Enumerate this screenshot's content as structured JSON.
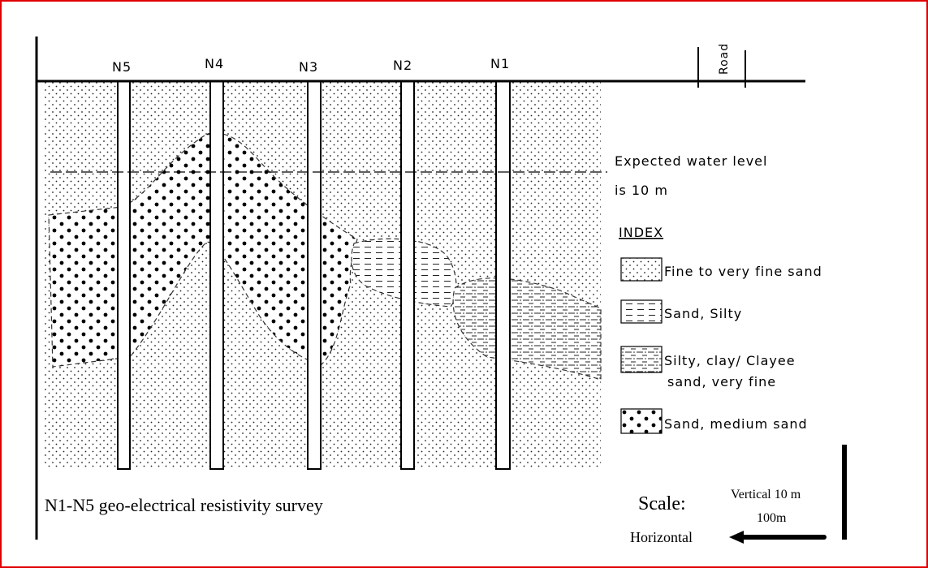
{
  "boreholes": [
    "N5",
    "N4",
    "N3",
    "N2",
    "N1"
  ],
  "road": "Road",
  "water_level": [
    "Expected water level",
    "is 10 m"
  ],
  "index": {
    "title": "INDEX",
    "items": [
      [
        "Fine to very fine sand"
      ],
      [
        "Sand, Silty"
      ],
      [
        "Silty, clay/ Clayee",
        "sand, very fine"
      ],
      [
        "Sand, medium sand"
      ]
    ]
  },
  "caption": "N1-N5 geo-electrical resistivity survey",
  "scale": {
    "label": "Scale:",
    "vertical": "Vertical  10 m",
    "horizontal_value": "100m",
    "horizontal": "Horizontal"
  }
}
